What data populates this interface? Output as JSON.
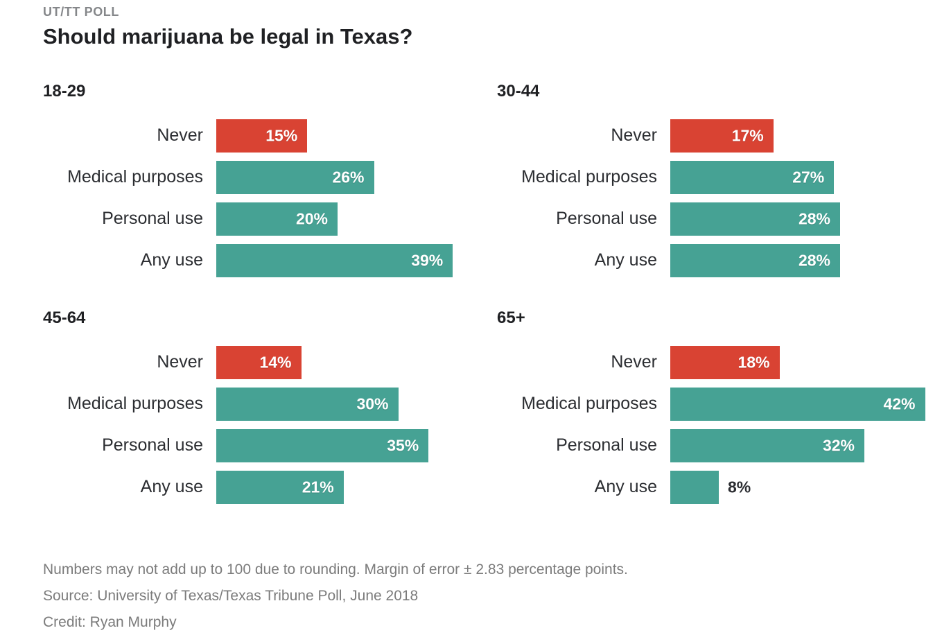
{
  "header": {
    "kicker": "UT/TT POLL",
    "title": "Should marijuana be legal in Texas?"
  },
  "chart_data": {
    "type": "bar",
    "orientation": "horizontal",
    "unit": "percent",
    "xlim": [
      0,
      45
    ],
    "grid": false,
    "legend": "none",
    "categories": [
      "Never",
      "Medical purposes",
      "Personal use",
      "Any use"
    ],
    "colors": {
      "never_red": "#d94333",
      "teal": "#46a294",
      "value_text_inside": "#ffffff",
      "value_text_outside": "#2b2d31"
    },
    "panels": [
      {
        "title": "18-29",
        "rows": [
          {
            "label": "Never",
            "value": 15,
            "display": "15%",
            "color": "#d94333",
            "value_label_inside": true
          },
          {
            "label": "Medical purposes",
            "value": 26,
            "display": "26%",
            "color": "#46a294",
            "value_label_inside": true
          },
          {
            "label": "Personal use",
            "value": 20,
            "display": "20%",
            "color": "#46a294",
            "value_label_inside": true
          },
          {
            "label": "Any use",
            "value": 39,
            "display": "39%",
            "color": "#46a294",
            "value_label_inside": true
          }
        ]
      },
      {
        "title": "30-44",
        "rows": [
          {
            "label": "Never",
            "value": 17,
            "display": "17%",
            "color": "#d94333",
            "value_label_inside": true
          },
          {
            "label": "Medical purposes",
            "value": 27,
            "display": "27%",
            "color": "#46a294",
            "value_label_inside": true
          },
          {
            "label": "Personal use",
            "value": 28,
            "display": "28%",
            "color": "#46a294",
            "value_label_inside": true
          },
          {
            "label": "Any use",
            "value": 28,
            "display": "28%",
            "color": "#46a294",
            "value_label_inside": true
          }
        ]
      },
      {
        "title": "45-64",
        "rows": [
          {
            "label": "Never",
            "value": 14,
            "display": "14%",
            "color": "#d94333",
            "value_label_inside": true
          },
          {
            "label": "Medical purposes",
            "value": 30,
            "display": "30%",
            "color": "#46a294",
            "value_label_inside": true
          },
          {
            "label": "Personal use",
            "value": 35,
            "display": "35%",
            "color": "#46a294",
            "value_label_inside": true
          },
          {
            "label": "Any use",
            "value": 21,
            "display": "21%",
            "color": "#46a294",
            "value_label_inside": true
          }
        ]
      },
      {
        "title": "65+",
        "rows": [
          {
            "label": "Never",
            "value": 18,
            "display": "18%",
            "color": "#d94333",
            "value_label_inside": true
          },
          {
            "label": "Medical purposes",
            "value": 42,
            "display": "42%",
            "color": "#46a294",
            "value_label_inside": true
          },
          {
            "label": "Personal use",
            "value": 32,
            "display": "32%",
            "color": "#46a294",
            "value_label_inside": true
          },
          {
            "label": "Any use",
            "value": 8,
            "display": "8%",
            "color": "#46a294",
            "value_label_inside": false
          }
        ]
      }
    ]
  },
  "footer": {
    "note": "Numbers may not add up to 100 due to rounding. Margin of error ± 2.83 percentage points.",
    "source": "Source: University of Texas/Texas Tribune Poll, June 2018",
    "credit": "Credit: Ryan Murphy"
  }
}
